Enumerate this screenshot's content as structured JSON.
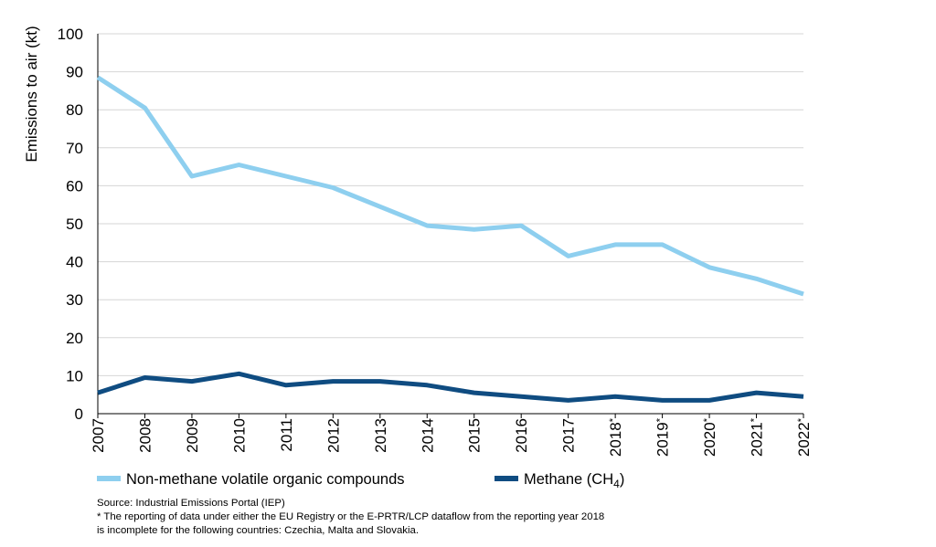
{
  "chart_data": {
    "type": "line",
    "ylabel": "Emissions to air (kt)",
    "xlabel": "",
    "ylim": [
      0,
      100
    ],
    "yticks": [
      0,
      10,
      20,
      30,
      40,
      50,
      60,
      70,
      80,
      90,
      100
    ],
    "grid": true,
    "legend_position": "bottom",
    "categories": [
      "2007",
      "2008",
      "2009",
      "2010",
      "2011",
      "2012",
      "2013",
      "2014",
      "2015",
      "2016",
      "2017",
      "2018",
      "2019",
      "2020",
      "2021",
      "2022"
    ],
    "category_marks": [
      "",
      "",
      "",
      "",
      "",
      "",
      "",
      "",
      "",
      "",
      "",
      "*",
      "*",
      "*",
      "*",
      "*"
    ],
    "series": [
      {
        "name": "Non-methane volatile organic compounds",
        "color": "#8ecfef",
        "values": [
          88.5,
          80.5,
          62.5,
          65.5,
          62.5,
          59.5,
          54.5,
          49.5,
          48.5,
          49.5,
          41.5,
          44.5,
          44.5,
          38.5,
          35.5,
          31.5
        ]
      },
      {
        "name": "Methane (CH4)",
        "color": "#0f4c81",
        "values": [
          5.5,
          9.5,
          8.5,
          10.5,
          7.5,
          8.5,
          8.5,
          7.5,
          5.5,
          4.5,
          3.5,
          4.5,
          3.5,
          3.5,
          5.5,
          4.5
        ]
      }
    ]
  },
  "legend": {
    "nmvoc_label": "Non-methane volatile organic compounds",
    "methane_label_main": "Methane (CH",
    "methane_label_sub": "4",
    "methane_label_close": ")"
  },
  "notes": {
    "source": "Source: Industrial Emissions Portal (IEP)",
    "footnote_line1": "* The reporting of data under either the EU Registry or the E-PRTR/LCP dataflow from the reporting year 2018",
    "footnote_line2": "is incomplete for the following countries: Czechia, Malta and Slovakia."
  }
}
